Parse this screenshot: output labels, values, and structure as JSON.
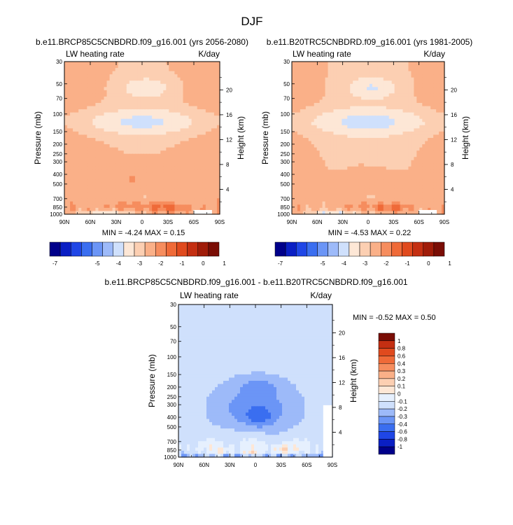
{
  "figure": {
    "title": "DJF"
  },
  "axes": {
    "pressure_ticks": [
      "30",
      "50",
      "70",
      "100",
      "150",
      "200",
      "250",
      "300",
      "400",
      "500",
      "700",
      "850",
      "1000"
    ],
    "pressure_values": [
      30,
      50,
      70,
      100,
      150,
      200,
      250,
      300,
      400,
      500,
      700,
      850,
      1000
    ],
    "height_ticks": [
      "20",
      "16",
      "12",
      "8",
      "4"
    ],
    "height_values": [
      20,
      16,
      12,
      8,
      4
    ],
    "lat_ticks": [
      "90N",
      "60N",
      "30N",
      "0",
      "30S",
      "60S",
      "90S"
    ],
    "lat_values": [
      90,
      60,
      30,
      0,
      -30,
      -60,
      -90
    ],
    "ylabel_left": "Pressure (mb)",
    "ylabel_right": "Height (km)"
  },
  "colors": {
    "abs_fill": [
      "#00008a",
      "#0a1fc4",
      "#1f46e6",
      "#3a6ef0",
      "#6b95f6",
      "#9dbaf9",
      "#cfe0fc",
      "#fde7d6",
      "#fccfb2",
      "#fab088",
      "#f68d5e",
      "#ef6a38",
      "#e04a1e",
      "#c42f12",
      "#a01c09",
      "#7a0d05"
    ],
    "diff_fill": [
      "#00008a",
      "#0a1fc4",
      "#1f46e6",
      "#3a6ef0",
      "#6b95f6",
      "#9dbaf9",
      "#cfe0fc",
      "#e6f0fe",
      "#fde7d6",
      "#fccfb2",
      "#fab088",
      "#f68d5e",
      "#ef6a38",
      "#e04a1e",
      "#c42f12",
      "#7a0d05"
    ]
  },
  "chart_data": [
    {
      "type": "heatmap",
      "panel": "future",
      "title": "b.e11.BRCP85C5CNBDRD.f09_g16.001 (yrs 2056-2080)",
      "left_label": "LW heating rate",
      "right_label": "K/day",
      "xlabel": "",
      "ylabel": "Pressure (mb)",
      "ylabel_right": "Height (km)",
      "xlim": [
        90,
        -90
      ],
      "ylim": [
        1000,
        30
      ],
      "min_label": "MIN =  -4.24   MAX =   0.15",
      "min": -4.24,
      "max": 0.15,
      "levels": [
        -7,
        -6.5,
        -6,
        -5.5,
        -5,
        -4.5,
        -4,
        -3.5,
        -3,
        -2.5,
        -2,
        -1.5,
        -1,
        -0.5,
        0,
        0.5,
        1
      ]
    },
    {
      "type": "heatmap",
      "panel": "present",
      "title": "b.e11.B20TRC5CNBDRD.f09_g16.001 (yrs 1981-2005)",
      "left_label": "LW heating rate",
      "right_label": "K/day",
      "xlabel": "",
      "ylabel": "Pressure (mb)",
      "ylabel_right": "Height (km)",
      "xlim": [
        90,
        -90
      ],
      "ylim": [
        1000,
        30
      ],
      "min_label": "MIN =  -4.53   MAX =   0.22",
      "min": -4.53,
      "max": 0.22,
      "levels": [
        -7,
        -6.5,
        -6,
        -5.5,
        -5,
        -4.5,
        -4,
        -3.5,
        -3,
        -2.5,
        -2,
        -1.5,
        -1,
        -0.5,
        0,
        0.5,
        1
      ]
    },
    {
      "type": "heatmap",
      "panel": "difference",
      "title": "b.e11.BRCP85C5CNBDRD.f09_g16.001 - b.e11.B20TRC5CNBDRD.f09_g16.001",
      "left_label": "LW heating rate",
      "right_label": "K/day",
      "xlabel": "",
      "ylabel": "Pressure (mb)",
      "ylabel_right": "Height (km)",
      "xlim": [
        90,
        -90
      ],
      "ylim": [
        1000,
        30
      ],
      "min_label": "MIN =  -0.52   MAX =   0.50",
      "min": -0.52,
      "max": 0.5,
      "levels": [
        -1,
        -0.8,
        -0.6,
        -0.4,
        -0.3,
        -0.2,
        -0.1,
        0,
        0.1,
        0.2,
        0.3,
        0.4,
        0.6,
        0.8,
        1
      ]
    }
  ],
  "colorbars": {
    "abs_labels": [
      "-7",
      "-5",
      "-4",
      "-3",
      "-2",
      "-1",
      "0",
      "1"
    ],
    "abs_label_values": [
      -7,
      -5,
      -4,
      -3,
      -2,
      -1,
      0,
      1
    ],
    "diff_labels": [
      "1",
      "0.8",
      "0.6",
      "0.4",
      "0.3",
      "0.2",
      "0.1",
      "0",
      "-0.1",
      "-0.2",
      "-0.3",
      "-0.4",
      "-0.6",
      "-0.8",
      "-1"
    ]
  }
}
